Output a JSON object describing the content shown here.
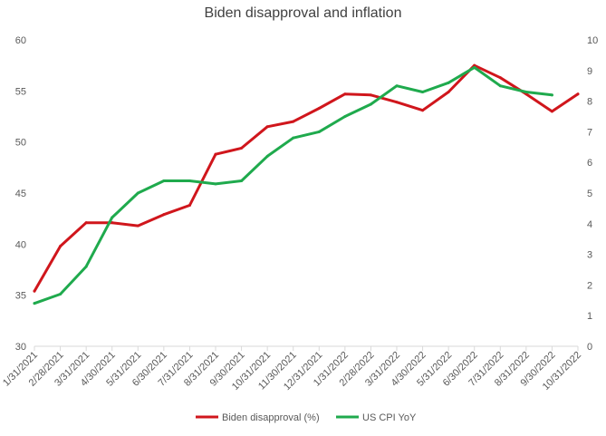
{
  "chart_data": {
    "type": "line",
    "title": "Biden disapproval and inflation",
    "x": [
      "1/31/2021",
      "2/28/2021",
      "3/31/2021",
      "4/30/2021",
      "5/31/2021",
      "6/30/2021",
      "7/31/2021",
      "8/31/2021",
      "9/30/2021",
      "10/31/2021",
      "11/30/2021",
      "12/31/2021",
      "1/31/2022",
      "2/28/2022",
      "3/31/2022",
      "4/30/2022",
      "5/31/2022",
      "6/30/2022",
      "7/31/2022",
      "8/31/2022",
      "9/30/2022",
      "10/31/2022"
    ],
    "y_left": {
      "ylim": [
        30,
        60
      ],
      "ticks": [
        30,
        35,
        40,
        45,
        50,
        55,
        60
      ]
    },
    "y_right": {
      "ylim": [
        0,
        10
      ],
      "ticks": [
        0,
        1,
        2,
        3,
        4,
        5,
        6,
        7,
        8,
        9,
        10
      ]
    },
    "grid": false,
    "legend_position": "bottom",
    "series": [
      {
        "name": "Biden disapproval (%)",
        "axis": "left",
        "color": "#d0161c",
        "values": [
          35.4,
          39.8,
          42.1,
          42.1,
          41.8,
          42.9,
          43.8,
          48.8,
          49.4,
          51.5,
          52.0,
          53.3,
          54.7,
          54.6,
          53.9,
          53.1,
          54.9,
          57.5,
          56.3,
          54.7,
          53.0,
          54.7
        ]
      },
      {
        "name": "US CPI YoY",
        "axis": "right",
        "color": "#1faa4d",
        "values": [
          1.4,
          1.7,
          2.6,
          4.2,
          5.0,
          5.4,
          5.4,
          5.3,
          5.4,
          6.2,
          6.8,
          7.0,
          7.5,
          7.9,
          8.5,
          8.3,
          8.6,
          9.1,
          8.5,
          8.3,
          8.2,
          null
        ]
      }
    ]
  }
}
